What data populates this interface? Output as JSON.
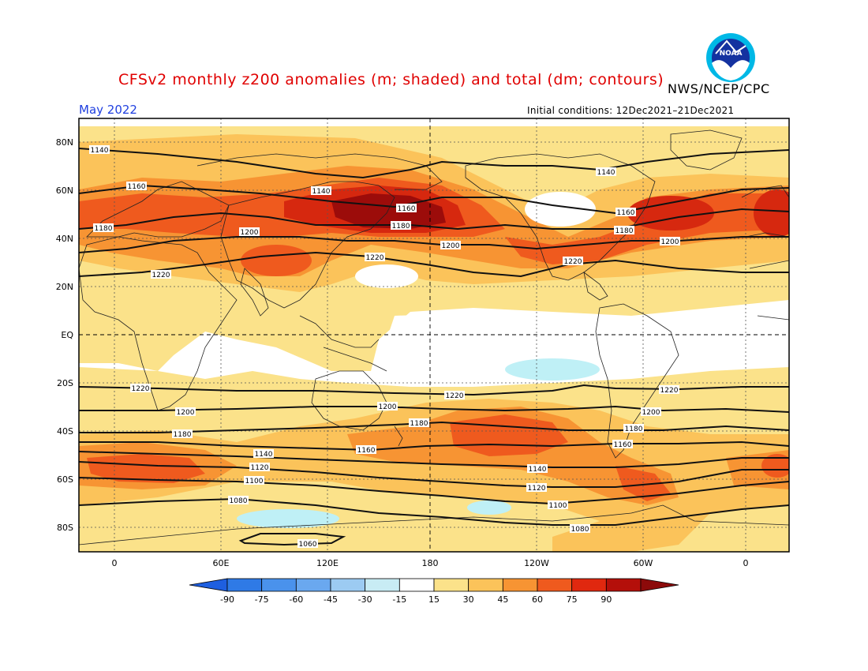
{
  "header": {
    "title": "CFSv2 monthly z200 anomalies (m; shaded) and total (dm; contours)",
    "agency": "NWS/NCEP/CPC",
    "month": "May 2022",
    "initial_conditions": "Initial conditions: 12Dec2021–21Dec2021"
  },
  "logo": {
    "text": "NOAA",
    "icon": "noaa-logo"
  },
  "axes": {
    "lat_ticks": [
      "80N",
      "60N",
      "40N",
      "20N",
      "EQ",
      "20S",
      "40S",
      "60S",
      "80S"
    ],
    "lon_ticks": [
      "0",
      "60E",
      "120E",
      "180",
      "120W",
      "60W",
      "0"
    ]
  },
  "contours": [
    {
      "value": "1140",
      "label": "1140"
    },
    {
      "value": "1160",
      "label": "1160"
    },
    {
      "value": "1180",
      "label": "1180"
    },
    {
      "value": "1200",
      "label": "1200"
    },
    {
      "value": "1220",
      "label": "1220"
    },
    {
      "value": "1100",
      "label": "1100"
    },
    {
      "value": "1120",
      "label": "1120"
    },
    {
      "value": "1080",
      "label": "1080"
    },
    {
      "value": "1060",
      "label": "1060"
    }
  ],
  "colorbar": {
    "ticks": [
      "-90",
      "-75",
      "-60",
      "-45",
      "-30",
      "-15",
      "15",
      "30",
      "45",
      "60",
      "75",
      "90"
    ],
    "colors": [
      "#1e5fe0",
      "#2f7ae6",
      "#4a92ec",
      "#6aa8ef",
      "#9ccbf2",
      "#c8ecf4",
      "#ffffff",
      "#fbe28a",
      "#fbc35a",
      "#f79433",
      "#ef5a1e",
      "#e0280f",
      "#b40f0a",
      "#8c0a0a"
    ]
  },
  "shading": {
    "lightblue": "#bff0f6",
    "c15": "#fbe28a",
    "c30": "#fbc35a",
    "c45": "#f79433",
    "c60": "#ef5a1e",
    "c75": "#d6280f",
    "c90": "#9c0c0a"
  }
}
